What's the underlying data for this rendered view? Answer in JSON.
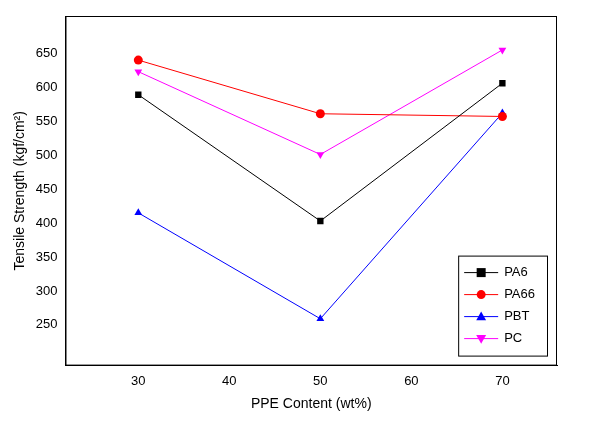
{
  "chart_data": {
    "type": "line",
    "x_label": "PPE Content (wt%)",
    "y_label": "Tensile Strength (kgf/cm²)",
    "x": [
      30,
      50,
      70
    ],
    "series": [
      {
        "name": "PA6",
        "color": "#000000",
        "marker": "square",
        "values": [
          589,
          403,
          606
        ]
      },
      {
        "name": "PA66",
        "color": "#ff0000",
        "marker": "circle",
        "values": [
          640,
          561,
          557
        ]
      },
      {
        "name": "PBT",
        "color": "#0000ff",
        "marker": "triangle",
        "values": [
          415,
          259,
          562
        ]
      },
      {
        "name": "PC",
        "color": "#ff00ff",
        "marker": "triangle_down",
        "values": [
          623,
          501,
          655
        ]
      }
    ],
    "xlim": [
      22,
      76
    ],
    "xticks": [
      30,
      40,
      50,
      60,
      70
    ],
    "ylim": [
      190,
      705
    ],
    "yticks": [
      250,
      300,
      350,
      400,
      450,
      500,
      550,
      600,
      650
    ],
    "grid": false,
    "legend": "lower right"
  }
}
